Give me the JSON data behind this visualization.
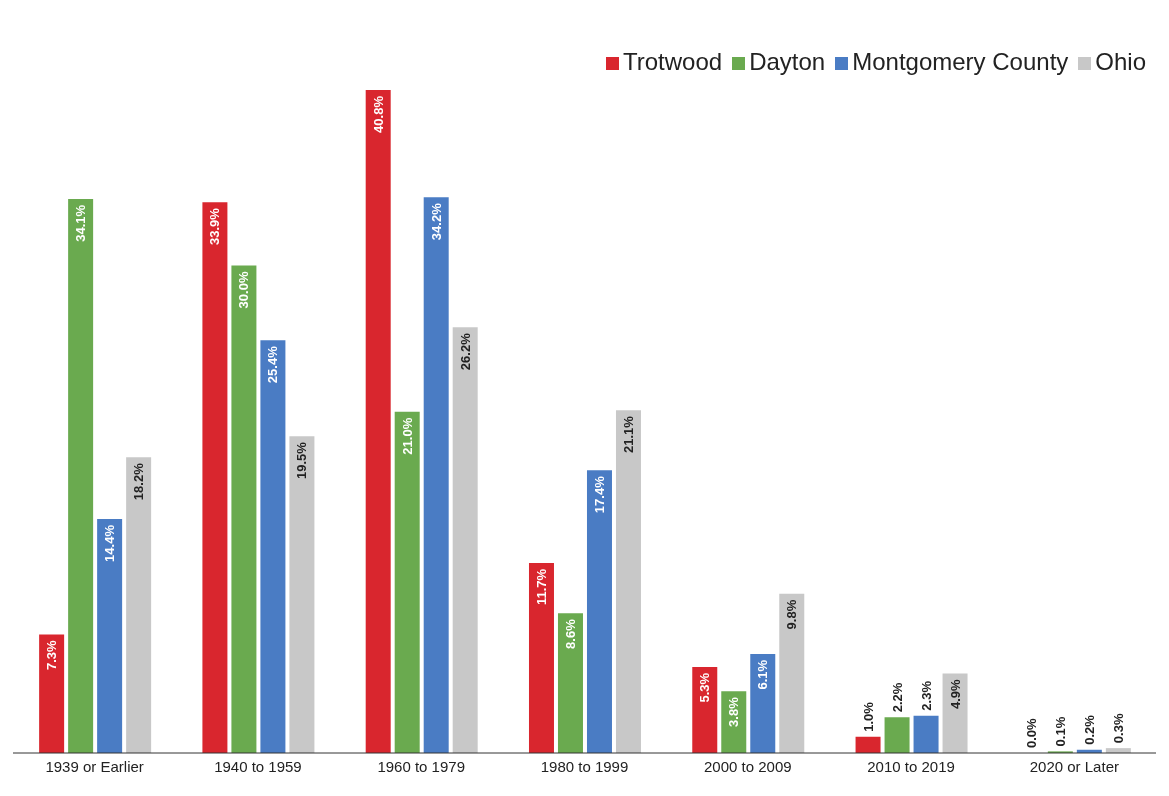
{
  "chart_data": {
    "type": "bar",
    "categories": [
      "1939 or Earlier",
      "1940 to 1959",
      "1960 to 1979",
      "1980 to 1999",
      "2000 to 2009",
      "2010 to 2019",
      "2020 or Later"
    ],
    "series": [
      {
        "name": "Trotwood",
        "color": "#d9262e",
        "values": [
          7.3,
          33.9,
          40.8,
          11.7,
          5.3,
          1.0,
          0.0
        ],
        "value_labels": [
          "7.3%",
          "33.9%",
          "40.8%",
          "11.7%",
          "5.3%",
          "1.0%",
          "0.0%"
        ]
      },
      {
        "name": "Dayton",
        "color": "#6aaa4f",
        "values": [
          34.1,
          30.0,
          21.0,
          8.6,
          3.8,
          2.2,
          0.1
        ],
        "value_labels": [
          "34.1%",
          "30.0%",
          "21.0%",
          "8.6%",
          "3.8%",
          "2.2%",
          "0.1%"
        ]
      },
      {
        "name": "Montgomery County",
        "color": "#4a7cc4",
        "values": [
          14.4,
          25.4,
          34.2,
          17.4,
          6.1,
          2.3,
          0.2
        ],
        "value_labels": [
          "14.4%",
          "25.4%",
          "34.2%",
          "17.4%",
          "6.1%",
          "2.3%",
          "0.2%"
        ]
      },
      {
        "name": "Ohio",
        "color": "#c8c8c8",
        "values": [
          18.2,
          19.5,
          26.2,
          21.1,
          9.8,
          4.9,
          0.3
        ],
        "value_labels": [
          "18.2%",
          "19.5%",
          "26.2%",
          "21.1%",
          "9.8%",
          "4.9%",
          "0.3%"
        ]
      }
    ],
    "tick_labels": "x",
    "legend": "top right"
  }
}
